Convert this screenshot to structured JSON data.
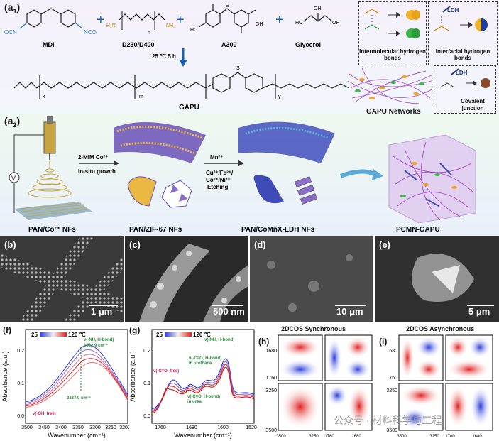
{
  "a1": {
    "label": "(a",
    "label_sub": "1",
    "reactants": [
      "MDI",
      "D230/D400",
      "A300",
      "Glycerol"
    ],
    "plus": "+",
    "condition": "25 ℃   5 h",
    "product": "GAPU",
    "subscripts": {
      "n": "n",
      "m": "m",
      "x": "x",
      "y": "y"
    },
    "bond_boxes": [
      "Intermolecular hydrogen bonds",
      "Interfacial hydrogen bonds",
      "Covalent junction"
    ],
    "ldh": "LDH",
    "network": "GAPU Networks"
  },
  "a2": {
    "label": "(a",
    "label_sub": "2",
    "steps": [
      "2-MIM Co²⁺",
      "In-situ growth",
      "Mn²⁺",
      "Cu²⁺/Fe³⁺/",
      "Co²⁺/Ni²⁺",
      "Etching"
    ],
    "materials": [
      "PAN/Co²⁺ NFs",
      "PAN/ZIF-67 NFs",
      "PAN/CoMnX-LDH NFs",
      "PCMN-GAPU"
    ],
    "v": "V"
  },
  "sem": [
    {
      "label": "(b)",
      "scale": "1 μm"
    },
    {
      "label": "(c)",
      "scale": "500 nm"
    },
    {
      "label": "(d)",
      "scale": "10 μm"
    },
    {
      "label": "(e)",
      "scale": "5 μm"
    }
  ],
  "plot_f": {
    "label": "(f)",
    "ylabel": "Absorbance (a.u.)",
    "xlabel": "Wavenumber (cm⁻¹)",
    "legend_low": "25",
    "legend_high": "120 ℃",
    "ann1": "ν(-NH, H-bond)",
    "ann2": "3332.9 cm⁻¹",
    "ann3": "3337.9 cm⁻¹",
    "ann4": "ν(-OH, free)",
    "xticks": [
      "3500",
      "3450",
      "3400",
      "3350",
      "3300",
      "3250",
      "3200"
    ],
    "yticks": [
      "0.0",
      "0.1",
      "0.2"
    ]
  },
  "plot_g": {
    "label": "(g)",
    "ylabel": "Absorbance (a.u.)",
    "xlabel": "Wavenumber (cm⁻¹)",
    "legend_low": "25",
    "legend_high": "120 ℃",
    "ann1": "ν(-NH, H-bond)",
    "ann2": "ν(-C=O, H-bond)",
    "ann3": "in urethane",
    "ann4": "ν(-C=O, free)",
    "ann5": "ν(-C=O, H-bond)",
    "ann6": "in urea",
    "xticks": [
      "1760",
      "1680",
      "1600",
      "1520"
    ],
    "yticks": [
      "0.0",
      "0.1",
      "0.2"
    ]
  },
  "plot_h": {
    "label": "(h)",
    "title": "2DCOS Synchronous",
    "yticks": [
      "1680",
      "1760",
      "3250",
      "3500"
    ],
    "xticks": [
      "3500",
      "3250",
      "1760",
      "1680"
    ]
  },
  "plot_i": {
    "label": "(i)",
    "title": "2DCOS Asynchronous",
    "yticks": [
      "1680",
      "1760",
      "3250",
      "3500"
    ],
    "xticks": [
      "3500",
      "3250",
      "1760",
      "1680"
    ]
  },
  "watermark": "公众号 · 材料科学与工程"
}
